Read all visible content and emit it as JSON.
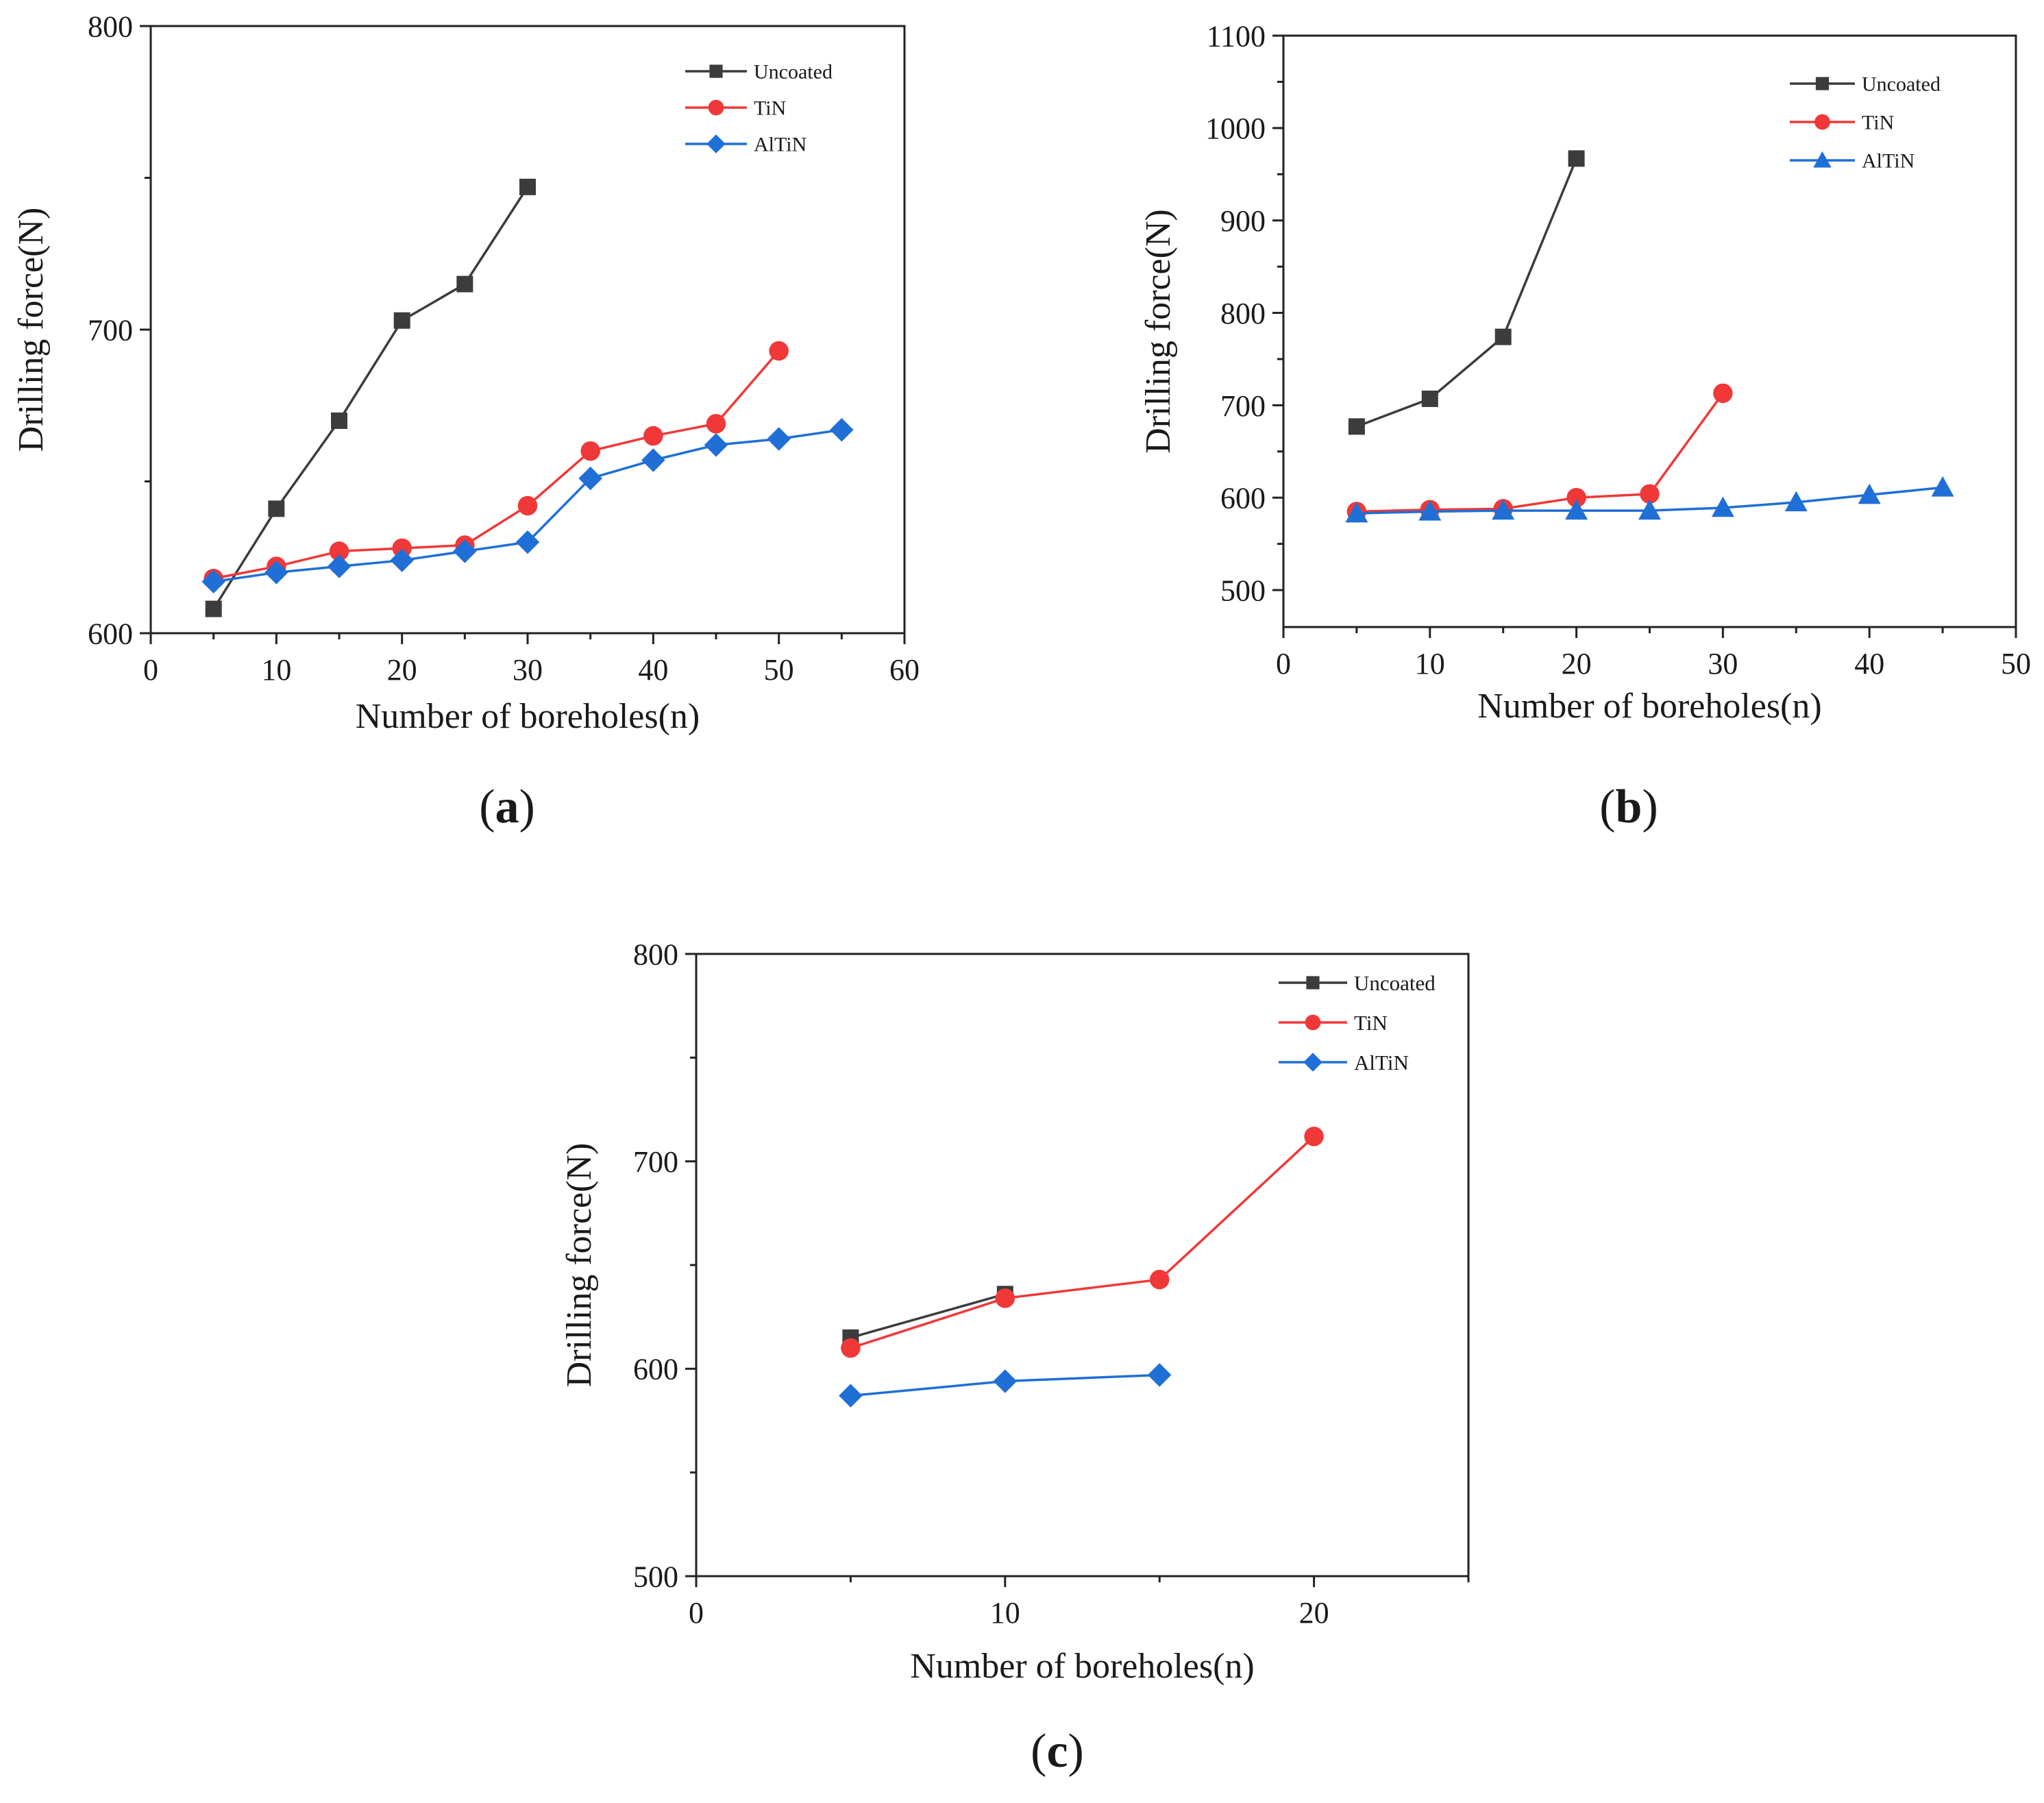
{
  "chart_data": [
    {
      "type": "line",
      "panel_label": "a",
      "xlabel": "Number of boreholes(n)",
      "ylabel": "Drilling force(N)",
      "xlim": [
        0,
        60
      ],
      "ylim": [
        600,
        800
      ],
      "xticks": [
        0,
        10,
        20,
        30,
        40,
        50,
        60
      ],
      "yticks": [
        600,
        700,
        800
      ],
      "legend_position": "top-right",
      "series": [
        {
          "name": "Uncoated",
          "marker": "square",
          "color": "#3c3c3c",
          "x": [
            5,
            10,
            15,
            20,
            25,
            30
          ],
          "y": [
            608,
            641,
            670,
            703,
            715,
            747
          ]
        },
        {
          "name": "TiN",
          "marker": "circle",
          "color": "#f03838",
          "x": [
            5,
            10,
            15,
            20,
            25,
            30,
            35,
            40,
            45,
            50
          ],
          "y": [
            618,
            622,
            627,
            628,
            629,
            642,
            660,
            665,
            669,
            693
          ]
        },
        {
          "name": "AlTiN",
          "marker": "diamond",
          "color": "#1f6fd6",
          "x": [
            5,
            10,
            15,
            20,
            25,
            30,
            35,
            40,
            45,
            50,
            55
          ],
          "y": [
            617,
            620,
            622,
            624,
            627,
            630,
            651,
            657,
            662,
            664,
            667
          ]
        }
      ]
    },
    {
      "type": "line",
      "panel_label": "b",
      "xlabel": "Number of boreholes(n)",
      "ylabel": "Drilling force(N)",
      "xlim": [
        0,
        50
      ],
      "ylim": [
        460,
        1100
      ],
      "xticks": [
        0,
        10,
        20,
        30,
        40,
        50
      ],
      "yticks": [
        500,
        600,
        700,
        800,
        900,
        1000,
        1100
      ],
      "legend_position": "top-right",
      "series": [
        {
          "name": "Uncoated",
          "marker": "square",
          "color": "#3c3c3c",
          "x": [
            5,
            10,
            15,
            20
          ],
          "y": [
            677,
            707,
            774,
            967
          ]
        },
        {
          "name": "TiN",
          "marker": "circle",
          "color": "#f03838",
          "x": [
            5,
            10,
            15,
            20,
            25,
            30
          ],
          "y": [
            585,
            587,
            588,
            600,
            604,
            713
          ]
        },
        {
          "name": "AlTiN",
          "marker": "triangle",
          "color": "#1f6fd6",
          "x": [
            5,
            10,
            15,
            20,
            25,
            30,
            35,
            40,
            45
          ],
          "y": [
            583,
            585,
            586,
            586,
            586,
            589,
            595,
            603,
            611
          ]
        }
      ]
    },
    {
      "type": "line",
      "panel_label": "c",
      "xlabel": "Number of boreholes(n)",
      "ylabel": "Drilling force(N)",
      "xlim": [
        0,
        25
      ],
      "ylim": [
        500,
        800
      ],
      "xticks": [
        0,
        10,
        20
      ],
      "yticks": [
        500,
        600,
        700,
        800
      ],
      "legend_position": "top-right",
      "series": [
        {
          "name": "Uncoated",
          "marker": "square",
          "color": "#3c3c3c",
          "x": [
            5,
            10
          ],
          "y": [
            615,
            636
          ]
        },
        {
          "name": "TiN",
          "marker": "circle",
          "color": "#f03838",
          "x": [
            5,
            10,
            15,
            20
          ],
          "y": [
            610,
            634,
            643,
            712
          ]
        },
        {
          "name": "AlTiN",
          "marker": "diamond",
          "color": "#1f6fd6",
          "x": [
            5,
            10,
            15
          ],
          "y": [
            587,
            594,
            597
          ]
        }
      ]
    }
  ]
}
